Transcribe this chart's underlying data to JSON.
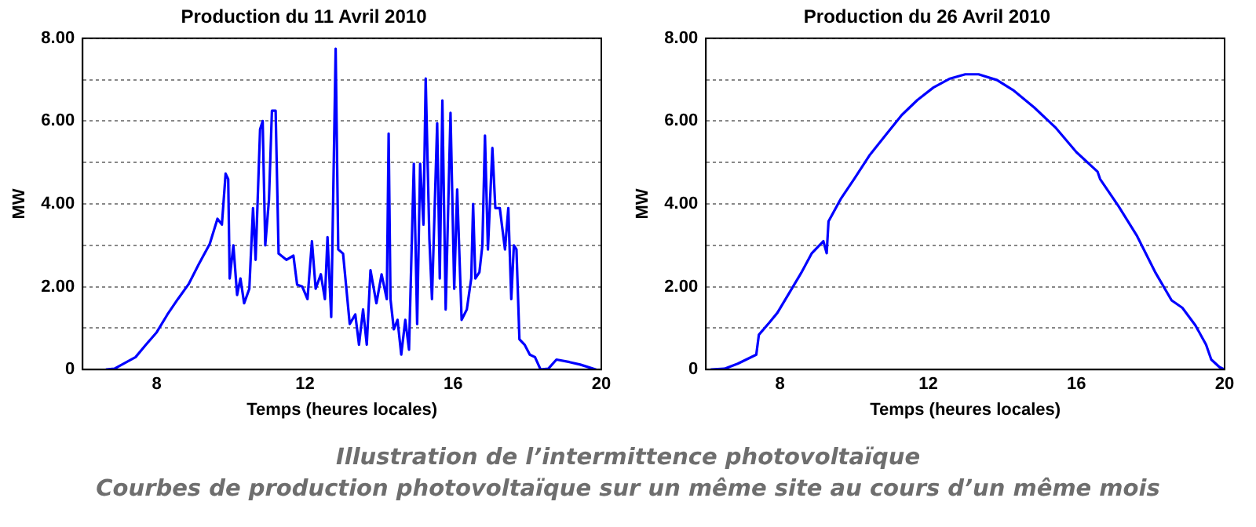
{
  "chart_data": [
    {
      "type": "line",
      "title": "Production du 11 Avril 2010",
      "xlabel": "Temps (heures locales)",
      "ylabel": "MW",
      "xlim": [
        6,
        20
      ],
      "xticks": [
        8,
        12,
        16,
        20
      ],
      "ylim": [
        0,
        8
      ],
      "yticks": [
        {
          "value": 0,
          "label": "0"
        },
        {
          "value": 1,
          "label": null
        },
        {
          "value": 2,
          "label": "2.00"
        },
        {
          "value": 3,
          "label": null
        },
        {
          "value": 4,
          "label": "4.00"
        },
        {
          "value": 5,
          "label": null
        },
        {
          "value": 6,
          "label": "6.00"
        },
        {
          "value": 7,
          "label": null
        },
        {
          "value": 8,
          "label": "8.00"
        }
      ],
      "grid": "y",
      "legend": false,
      "line_style": "solid",
      "marker": "none",
      "series": [
        {
          "color": "#0000ff",
          "x": [
            6.64,
            6.86,
            7.43,
            7.71,
            8.0,
            8.29,
            8.57,
            8.86,
            9.14,
            9.43,
            9.64,
            9.76,
            9.86,
            9.93,
            9.97,
            10.07,
            10.17,
            10.26,
            10.36,
            10.5,
            10.6,
            10.67,
            10.79,
            10.86,
            10.93,
            11.03,
            11.11,
            11.21,
            11.29,
            11.5,
            11.69,
            11.79,
            11.93,
            12.07,
            12.19,
            12.29,
            12.43,
            12.54,
            12.61,
            12.71,
            12.83,
            12.9,
            13.03,
            13.21,
            13.36,
            13.46,
            13.57,
            13.67,
            13.77,
            13.93,
            14.07,
            14.21,
            14.26,
            14.31,
            14.4,
            14.5,
            14.6,
            14.71,
            14.81,
            14.94,
            15.03,
            15.11,
            15.2,
            15.26,
            15.36,
            15.43,
            15.57,
            15.64,
            15.71,
            15.8,
            15.93,
            16.03,
            16.11,
            16.23,
            16.37,
            16.49,
            16.54,
            16.6,
            16.71,
            16.79,
            16.86,
            16.94,
            17.06,
            17.14,
            17.26,
            17.4,
            17.49,
            17.57,
            17.64,
            17.71,
            17.79,
            17.93,
            18.07,
            18.21,
            18.36,
            18.57,
            18.79,
            19.14,
            19.43,
            19.86
          ],
          "values": [
            0,
            0.02,
            0.3,
            0.6,
            0.9,
            1.33,
            1.7,
            2.06,
            2.55,
            3.03,
            3.64,
            3.5,
            4.73,
            4.6,
            2.2,
            3.0,
            1.8,
            2.2,
            1.6,
            1.95,
            3.9,
            2.65,
            5.8,
            6.0,
            3.0,
            4.1,
            6.25,
            6.25,
            2.8,
            2.65,
            2.75,
            2.05,
            2.0,
            1.7,
            3.1,
            1.95,
            2.3,
            1.7,
            3.2,
            1.27,
            7.75,
            2.9,
            2.8,
            1.1,
            1.33,
            0.6,
            1.45,
            0.6,
            2.4,
            1.6,
            2.3,
            1.7,
            5.7,
            1.7,
            0.97,
            1.2,
            0.36,
            1.2,
            0.48,
            4.97,
            1.1,
            4.97,
            3.5,
            7.03,
            3.15,
            1.7,
            5.95,
            2.2,
            6.5,
            1.45,
            6.2,
            1.95,
            4.35,
            1.2,
            1.45,
            2.2,
            4.0,
            2.2,
            2.35,
            3.0,
            5.65,
            2.9,
            5.35,
            3.9,
            3.9,
            2.9,
            3.9,
            1.7,
            3.0,
            2.9,
            0.73,
            0.6,
            0.36,
            0.3,
            0,
            0.02,
            0.24,
            0.18,
            0.12,
            0
          ]
        }
      ]
    },
    {
      "type": "line",
      "title": "Production du 26 Avril 2010",
      "xlabel": "Temps (heures locales)",
      "ylabel": "MW",
      "xlim": [
        6,
        20
      ],
      "xticks": [
        8,
        12,
        16,
        20
      ],
      "ylim": [
        0,
        8
      ],
      "yticks": [
        {
          "value": 0,
          "label": "0"
        },
        {
          "value": 1,
          "label": null
        },
        {
          "value": 2,
          "label": "2.00"
        },
        {
          "value": 3,
          "label": null
        },
        {
          "value": 4,
          "label": "4.00"
        },
        {
          "value": 5,
          "label": null
        },
        {
          "value": 6,
          "label": "6.00"
        },
        {
          "value": 7,
          "label": null
        },
        {
          "value": 8,
          "label": "8.00"
        }
      ],
      "grid": "y",
      "legend": false,
      "line_style": "solid",
      "marker": "none",
      "annotations": [
        "Illustration de l’intermittence photovoltaïque",
        "Courbes de production photovoltaïque sur un même site au cours d’un même mois"
      ],
      "series": [
        {
          "color": "#0000ff",
          "x": [
            6.14,
            6.5,
            6.86,
            7.36,
            7.43,
            7.71,
            7.93,
            8.29,
            8.57,
            8.86,
            9.17,
            9.26,
            9.31,
            9.64,
            10.0,
            10.43,
            10.86,
            11.29,
            11.71,
            12.14,
            12.57,
            13.0,
            13.36,
            13.86,
            14.29,
            14.86,
            15.43,
            16.0,
            16.57,
            16.64,
            17.14,
            17.64,
            18.14,
            18.57,
            18.86,
            19.21,
            19.5,
            19.64,
            19.86,
            20.0
          ],
          "values": [
            0,
            0.02,
            0.14,
            0.36,
            0.84,
            1.13,
            1.37,
            1.91,
            2.33,
            2.81,
            3.1,
            2.81,
            3.58,
            4.12,
            4.6,
            5.19,
            5.67,
            6.15,
            6.51,
            6.81,
            7.02,
            7.13,
            7.13,
            6.99,
            6.75,
            6.33,
            5.85,
            5.25,
            4.78,
            4.6,
            3.94,
            3.22,
            2.33,
            1.67,
            1.49,
            1.07,
            0.6,
            0.24,
            0.06,
            0
          ]
        }
      ]
    }
  ]
}
